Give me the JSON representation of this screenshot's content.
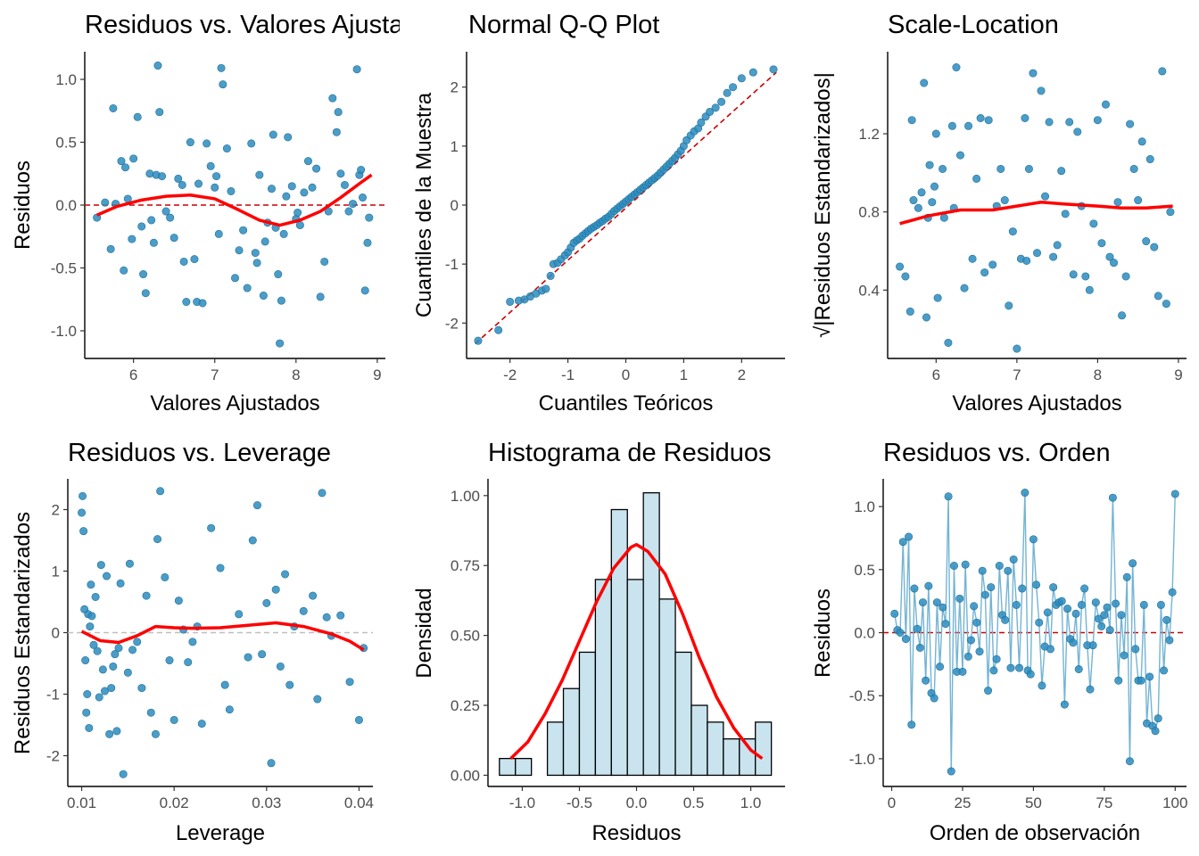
{
  "chart_data": [
    {
      "type": "scatter",
      "title": "Residuos vs. Valores Ajustados",
      "xlabel": "Valores Ajustados",
      "ylabel": "Residuos",
      "xlim": [
        5.4,
        9.1
      ],
      "ylim": [
        -1.22,
        1.22
      ],
      "xticks": [
        6,
        7,
        8,
        9
      ],
      "yticks": [
        -1.0,
        -0.5,
        0.0,
        0.5,
        1.0
      ],
      "ytick_labels": [
        "-1.0",
        "-0.5",
        "0.0",
        "0.5",
        "1.0"
      ],
      "hline": 0,
      "colors": {
        "points": "#2b8cbe",
        "smooth": "#ff0000",
        "ref": "#cc0000"
      },
      "x": [
        5.55,
        5.65,
        5.72,
        5.75,
        5.78,
        5.85,
        5.88,
        5.9,
        5.93,
        5.98,
        6.0,
        6.05,
        6.1,
        6.12,
        6.15,
        6.2,
        6.22,
        6.25,
        6.28,
        6.3,
        6.32,
        6.35,
        6.4,
        6.45,
        6.5,
        6.55,
        6.6,
        6.62,
        6.65,
        6.7,
        6.75,
        6.78,
        6.8,
        6.85,
        6.9,
        6.95,
        7.0,
        7.02,
        7.05,
        7.08,
        7.1,
        7.15,
        7.2,
        7.25,
        7.3,
        7.35,
        7.4,
        7.45,
        7.5,
        7.52,
        7.55,
        7.6,
        7.62,
        7.65,
        7.7,
        7.72,
        7.75,
        7.78,
        7.8,
        7.82,
        7.85,
        7.88,
        7.9,
        7.95,
        8.0,
        8.02,
        8.05,
        8.1,
        8.15,
        8.2,
        8.25,
        8.3,
        8.35,
        8.4,
        8.45,
        8.5,
        8.52,
        8.55,
        8.6,
        8.65,
        8.7,
        8.75,
        8.78,
        8.8,
        8.82,
        8.85,
        8.88,
        8.9
      ],
      "y": [
        -0.1,
        0.02,
        -0.35,
        0.77,
        0.01,
        0.35,
        -0.52,
        0.3,
        0.05,
        -0.27,
        0.37,
        0.7,
        -0.17,
        -0.55,
        -0.7,
        0.25,
        -0.12,
        -0.3,
        0.24,
        1.11,
        0.74,
        0.23,
        -0.05,
        -0.1,
        -0.26,
        0.21,
        0.16,
        -0.45,
        -0.77,
        0.5,
        -0.43,
        -0.77,
        0.17,
        -0.78,
        0.49,
        0.31,
        0.14,
        0.23,
        -0.23,
        1.09,
        0.96,
        0.45,
        0.11,
        -0.58,
        -0.36,
        -0.2,
        -0.66,
        0.49,
        -0.38,
        -0.46,
        0.24,
        -0.72,
        -0.29,
        -0.14,
        0.13,
        0.56,
        -0.18,
        -0.55,
        -1.1,
        -0.76,
        -0.23,
        0.07,
        0.54,
        0.15,
        -0.11,
        -0.06,
        -0.16,
        0.1,
        0.35,
        0.14,
        0.29,
        -0.73,
        -0.45,
        -0.05,
        0.85,
        0.58,
        0.74,
        0.25,
        0.16,
        -0.05,
        0.01,
        1.08,
        0.24,
        0.28,
        0.06,
        -0.68,
        -0.3,
        -0.1
      ],
      "smooth": [
        [
          5.55,
          -0.08
        ],
        [
          5.8,
          -0.01
        ],
        [
          6.1,
          0.04
        ],
        [
          6.4,
          0.07
        ],
        [
          6.7,
          0.08
        ],
        [
          7.0,
          0.05
        ],
        [
          7.3,
          -0.04
        ],
        [
          7.55,
          -0.12
        ],
        [
          7.8,
          -0.16
        ],
        [
          8.05,
          -0.12
        ],
        [
          8.3,
          -0.05
        ],
        [
          8.55,
          0.06
        ],
        [
          8.8,
          0.18
        ],
        [
          8.93,
          0.24
        ]
      ]
    },
    {
      "type": "scatter",
      "title": "Normal Q-Q Plot",
      "xlabel": "Cuantiles Teóricos",
      "ylabel": "Cuantiles de la Muestra",
      "xlim": [
        -2.75,
        2.75
      ],
      "ylim": [
        -2.6,
        2.6
      ],
      "xticks": [
        -2,
        -1,
        0,
        1,
        2
      ],
      "yticks": [
        -2,
        -1,
        0,
        1,
        2
      ],
      "refline": [
        [
          -2.6,
          -2.35
        ],
        [
          2.6,
          2.25
        ]
      ],
      "colors": {
        "points": "#2b8cbe",
        "ref": "#cc0000"
      },
      "x": [
        -2.55,
        -2.2,
        -2.0,
        -1.85,
        -1.75,
        -1.65,
        -1.55,
        -1.45,
        -1.38,
        -1.3,
        -1.25,
        -1.18,
        -1.12,
        -1.05,
        -1.0,
        -0.95,
        -0.9,
        -0.85,
        -0.8,
        -0.75,
        -0.7,
        -0.65,
        -0.6,
        -0.55,
        -0.5,
        -0.45,
        -0.4,
        -0.35,
        -0.3,
        -0.25,
        -0.2,
        -0.15,
        -0.1,
        -0.05,
        0.0,
        0.05,
        0.1,
        0.15,
        0.2,
        0.25,
        0.3,
        0.35,
        0.4,
        0.45,
        0.5,
        0.55,
        0.6,
        0.65,
        0.7,
        0.75,
        0.8,
        0.85,
        0.9,
        0.95,
        1.0,
        1.05,
        1.12,
        1.18,
        1.25,
        1.3,
        1.38,
        1.45,
        1.55,
        1.65,
        1.75,
        1.85,
        2.0,
        2.2,
        2.55
      ],
      "y": [
        -2.3,
        -2.12,
        -1.64,
        -1.62,
        -1.6,
        -1.55,
        -1.5,
        -1.45,
        -1.42,
        -1.2,
        -1.0,
        -0.98,
        -0.92,
        -0.85,
        -0.8,
        -0.72,
        -0.64,
        -0.6,
        -0.57,
        -0.52,
        -0.48,
        -0.44,
        -0.4,
        -0.37,
        -0.34,
        -0.3,
        -0.27,
        -0.23,
        -0.2,
        -0.15,
        -0.1,
        -0.06,
        -0.02,
        0.02,
        0.06,
        0.1,
        0.14,
        0.18,
        0.22,
        0.26,
        0.3,
        0.34,
        0.38,
        0.42,
        0.46,
        0.5,
        0.55,
        0.6,
        0.65,
        0.7,
        0.75,
        0.8,
        0.86,
        0.92,
        1.0,
        1.1,
        1.18,
        1.25,
        1.3,
        1.4,
        1.5,
        1.58,
        1.65,
        1.75,
        1.9,
        2.0,
        2.15,
        2.25,
        2.3
      ]
    },
    {
      "type": "scatter",
      "title": "Scale-Location",
      "xlabel": "Valores Ajustados",
      "ylabel": "√|Residuos Estandarizados|",
      "xlim": [
        5.4,
        9.1
      ],
      "ylim": [
        0.05,
        1.62
      ],
      "xticks": [
        6,
        7,
        8,
        9
      ],
      "yticks": [
        0.4,
        0.8,
        1.2
      ],
      "ytick_labels": [
        "0.4",
        "0.8",
        "1.2"
      ],
      "colors": {
        "points": "#2b8cbe",
        "smooth": "#ff0000"
      },
      "x": [
        5.55,
        5.62,
        5.68,
        5.7,
        5.72,
        5.78,
        5.82,
        5.85,
        5.88,
        5.9,
        5.92,
        5.95,
        5.98,
        6.0,
        6.02,
        6.08,
        6.1,
        6.15,
        6.2,
        6.22,
        6.25,
        6.3,
        6.35,
        6.4,
        6.45,
        6.5,
        6.55,
        6.6,
        6.65,
        6.7,
        6.75,
        6.8,
        6.85,
        6.9,
        6.95,
        7.0,
        7.05,
        7.1,
        7.12,
        7.15,
        7.2,
        7.25,
        7.3,
        7.35,
        7.4,
        7.45,
        7.5,
        7.55,
        7.6,
        7.65,
        7.7,
        7.75,
        7.8,
        7.85,
        7.9,
        7.95,
        8.0,
        8.05,
        8.1,
        8.15,
        8.2,
        8.25,
        8.3,
        8.35,
        8.4,
        8.45,
        8.5,
        8.55,
        8.6,
        8.65,
        8.7,
        8.75,
        8.8,
        8.85,
        8.9
      ],
      "y": [
        0.52,
        0.47,
        0.29,
        1.27,
        0.86,
        0.82,
        0.9,
        1.46,
        0.26,
        0.77,
        1.04,
        0.85,
        0.93,
        1.2,
        0.36,
        1.02,
        0.77,
        0.13,
        1.24,
        0.82,
        1.54,
        1.09,
        0.41,
        1.24,
        0.56,
        0.97,
        1.28,
        0.49,
        1.27,
        0.53,
        0.83,
        1.02,
        0.86,
        0.32,
        0.7,
        0.1,
        0.56,
        1.28,
        0.55,
        1.02,
        1.51,
        0.59,
        1.42,
        0.88,
        1.26,
        0.57,
        0.63,
        1.01,
        0.79,
        1.26,
        0.48,
        1.21,
        0.83,
        0.47,
        0.4,
        0.74,
        1.27,
        0.64,
        1.35,
        0.57,
        0.54,
        0.85,
        0.27,
        0.47,
        1.25,
        1.02,
        0.86,
        1.16,
        0.65,
        1.07,
        0.62,
        0.37,
        1.52,
        0.33,
        0.8
      ],
      "smooth": [
        [
          5.55,
          0.74
        ],
        [
          5.9,
          0.78
        ],
        [
          6.3,
          0.81
        ],
        [
          6.7,
          0.81
        ],
        [
          7.0,
          0.83
        ],
        [
          7.3,
          0.85
        ],
        [
          7.6,
          0.84
        ],
        [
          8.0,
          0.83
        ],
        [
          8.3,
          0.82
        ],
        [
          8.6,
          0.82
        ],
        [
          8.93,
          0.83
        ]
      ]
    },
    {
      "type": "scatter",
      "title": "Residuos vs. Leverage",
      "xlabel": "Leverage",
      "ylabel": "Residuos Estandarizados",
      "xlim": [
        0.0085,
        0.0415
      ],
      "ylim": [
        -2.5,
        2.5
      ],
      "xticks": [
        0.01,
        0.02,
        0.03,
        0.04
      ],
      "xtick_labels": [
        "0.01",
        "0.02",
        "0.03",
        "0.04"
      ],
      "yticks": [
        -2,
        -1,
        0,
        1,
        2
      ],
      "hline": 0,
      "colors": {
        "points": "#2b8cbe",
        "smooth": "#ff0000",
        "ref": "#bfbfbf"
      },
      "x": [
        0.01,
        0.0101,
        0.0102,
        0.0103,
        0.0104,
        0.0105,
        0.0106,
        0.0107,
        0.0108,
        0.0109,
        0.011,
        0.0111,
        0.0113,
        0.0115,
        0.0117,
        0.0119,
        0.0121,
        0.0123,
        0.0125,
        0.0127,
        0.013,
        0.0132,
        0.0134,
        0.0136,
        0.0138,
        0.014,
        0.0142,
        0.0145,
        0.015,
        0.0152,
        0.0155,
        0.016,
        0.0165,
        0.017,
        0.0175,
        0.018,
        0.0182,
        0.0185,
        0.019,
        0.0195,
        0.02,
        0.0205,
        0.021,
        0.0215,
        0.022,
        0.0225,
        0.023,
        0.024,
        0.025,
        0.0255,
        0.026,
        0.027,
        0.028,
        0.0285,
        0.029,
        0.0295,
        0.03,
        0.0305,
        0.031,
        0.0315,
        0.032,
        0.0325,
        0.033,
        0.034,
        0.035,
        0.0355,
        0.036,
        0.0365,
        0.037,
        0.038,
        0.039,
        0.04,
        0.0405
      ],
      "y": [
        1.95,
        2.22,
        1.65,
        0.38,
        -0.45,
        -1.3,
        -1.0,
        0.3,
        -1.55,
        0.1,
        0.78,
        0.27,
        -0.2,
        0.58,
        -0.3,
        -1.05,
        1.1,
        -0.6,
        -0.95,
        0.92,
        -1.65,
        -0.9,
        -0.55,
        -0.35,
        -1.6,
        -0.25,
        0.8,
        -2.3,
        -0.65,
        1.12,
        -0.28,
        -0.15,
        -0.9,
        0.6,
        -1.3,
        -1.65,
        1.52,
        2.3,
        0.9,
        -0.45,
        -1.42,
        0.52,
        0.05,
        -0.48,
        -0.15,
        0.1,
        -1.48,
        1.7,
        1.05,
        -0.85,
        -1.25,
        0.3,
        -0.4,
        1.5,
        2.07,
        -0.35,
        0.48,
        -2.12,
        0.7,
        -0.55,
        0.95,
        -0.85,
        0.1,
        0.35,
        0.6,
        -1.08,
        2.27,
        0.25,
        -0.05,
        0.28,
        -0.8,
        -1.42,
        -0.25
      ],
      "smooth": [
        [
          0.01,
          0.02
        ],
        [
          0.012,
          -0.13
        ],
        [
          0.014,
          -0.16
        ],
        [
          0.016,
          -0.05
        ],
        [
          0.018,
          0.1
        ],
        [
          0.02,
          0.08
        ],
        [
          0.022,
          0.07
        ],
        [
          0.025,
          0.08
        ],
        [
          0.028,
          0.12
        ],
        [
          0.031,
          0.16
        ],
        [
          0.034,
          0.1
        ],
        [
          0.037,
          -0.02
        ],
        [
          0.039,
          -0.14
        ],
        [
          0.0405,
          -0.28
        ]
      ]
    },
    {
      "type": "bar",
      "title": "Histograma de Residuos",
      "xlabel": "Residuos",
      "ylabel": "Densidad",
      "xlim": [
        -1.3,
        1.3
      ],
      "ylim": [
        -0.04,
        1.06
      ],
      "xticks": [
        -1.0,
        -0.5,
        0.0,
        0.5,
        1.0
      ],
      "xtick_labels": [
        "-1.0",
        "-0.5",
        "0.0",
        "0.5",
        "1.0"
      ],
      "yticks": [
        0.0,
        0.25,
        0.5,
        0.75,
        1.0
      ],
      "ytick_labels": [
        "0.00",
        "0.25",
        "0.50",
        "0.75",
        "1.00"
      ],
      "bin_edges": [
        -1.2,
        -1.06,
        -0.92,
        -0.78,
        -0.64,
        -0.5,
        -0.36,
        -0.22,
        -0.08,
        0.06,
        0.2,
        0.34,
        0.48,
        0.62,
        0.76,
        0.9,
        1.04,
        1.18
      ],
      "values": [
        0.06,
        0.06,
        0.0,
        0.19,
        0.31,
        0.44,
        0.7,
        0.95,
        0.7,
        1.01,
        0.63,
        0.44,
        0.25,
        0.19,
        0.13,
        0.13,
        0.19
      ],
      "density_curve": [
        [
          -1.1,
          0.06
        ],
        [
          -0.95,
          0.12
        ],
        [
          -0.8,
          0.22
        ],
        [
          -0.65,
          0.34
        ],
        [
          -0.5,
          0.48
        ],
        [
          -0.35,
          0.62
        ],
        [
          -0.2,
          0.74
        ],
        [
          -0.05,
          0.815
        ],
        [
          0.0,
          0.825
        ],
        [
          0.1,
          0.8
        ],
        [
          0.25,
          0.72
        ],
        [
          0.4,
          0.58
        ],
        [
          0.55,
          0.42
        ],
        [
          0.7,
          0.28
        ],
        [
          0.85,
          0.17
        ],
        [
          1.0,
          0.09
        ],
        [
          1.1,
          0.06
        ]
      ],
      "colors": {
        "bar_fill": "#c9e4ef",
        "bar_edge": "#000000",
        "curve": "#ff0000"
      }
    },
    {
      "type": "line",
      "title": "Residuos vs. Orden",
      "xlabel": "Orden de observación",
      "ylabel": "Residuos",
      "xlim": [
        -3,
        104
      ],
      "ylim": [
        -1.22,
        1.22
      ],
      "xticks": [
        0,
        25,
        50,
        75,
        100
      ],
      "yticks": [
        -1.0,
        -0.5,
        0.0,
        0.5,
        1.0
      ],
      "ytick_labels": [
        "-1.0",
        "-0.5",
        "0.0",
        "0.5",
        "1.0"
      ],
      "hline": 0,
      "colors": {
        "points": "#2b8cbe",
        "line": "#74b4d4",
        "ref": "#cc0000"
      },
      "x": [
        1,
        2,
        3,
        4,
        5,
        6,
        7,
        8,
        9,
        10,
        11,
        12,
        13,
        14,
        15,
        16,
        17,
        18,
        19,
        20,
        21,
        22,
        23,
        24,
        25,
        26,
        27,
        28,
        29,
        30,
        31,
        32,
        33,
        34,
        35,
        36,
        37,
        38,
        39,
        40,
        41,
        42,
        43,
        44,
        45,
        46,
        47,
        48,
        49,
        50,
        51,
        52,
        53,
        54,
        55,
        56,
        57,
        58,
        59,
        60,
        61,
        62,
        63,
        64,
        65,
        66,
        67,
        68,
        69,
        70,
        71,
        72,
        73,
        74,
        75,
        76,
        77,
        78,
        79,
        80,
        81,
        82,
        83,
        84,
        85,
        86,
        87,
        88,
        89,
        90,
        91,
        92,
        93,
        94,
        95,
        96,
        97,
        98,
        99,
        100
      ],
      "y": [
        0.15,
        0.02,
        0.0,
        0.72,
        -0.05,
        0.76,
        -0.73,
        0.35,
        0.03,
        -0.12,
        0.24,
        -0.38,
        0.37,
        -0.48,
        -0.52,
        0.24,
        -0.27,
        0.2,
        0.07,
        1.08,
        -1.1,
        0.53,
        -0.31,
        0.27,
        -0.31,
        0.54,
        -0.19,
        -0.06,
        0.21,
        0.08,
        -0.15,
        0.49,
        0.3,
        -0.46,
        0.36,
        -0.3,
        -0.21,
        0.53,
        0.14,
        0.1,
        0.49,
        -0.28,
        0.58,
        0.22,
        -0.28,
        0.35,
        1.11,
        -0.3,
        -0.33,
        0.74,
        0.38,
        0.08,
        -0.42,
        -0.11,
        0.16,
        -0.13,
        0.36,
        0.22,
        0.24,
        0.25,
        -0.57,
        0.19,
        -0.05,
        -0.08,
        0.15,
        -0.29,
        0.22,
        0.35,
        -0.1,
        -0.45,
        -0.1,
        0.24,
        0.11,
        0.05,
        0.14,
        0.2,
        0.02,
        1.07,
        0.23,
        -0.38,
        0.14,
        -0.18,
        0.44,
        -1.02,
        0.55,
        -0.13,
        -0.38,
        -0.38,
        0.22,
        -0.72,
        -0.35,
        -0.74,
        -0.78,
        -0.68,
        0.22,
        -0.3,
        0.1,
        -0.06,
        0.32,
        1.1
      ]
    }
  ]
}
